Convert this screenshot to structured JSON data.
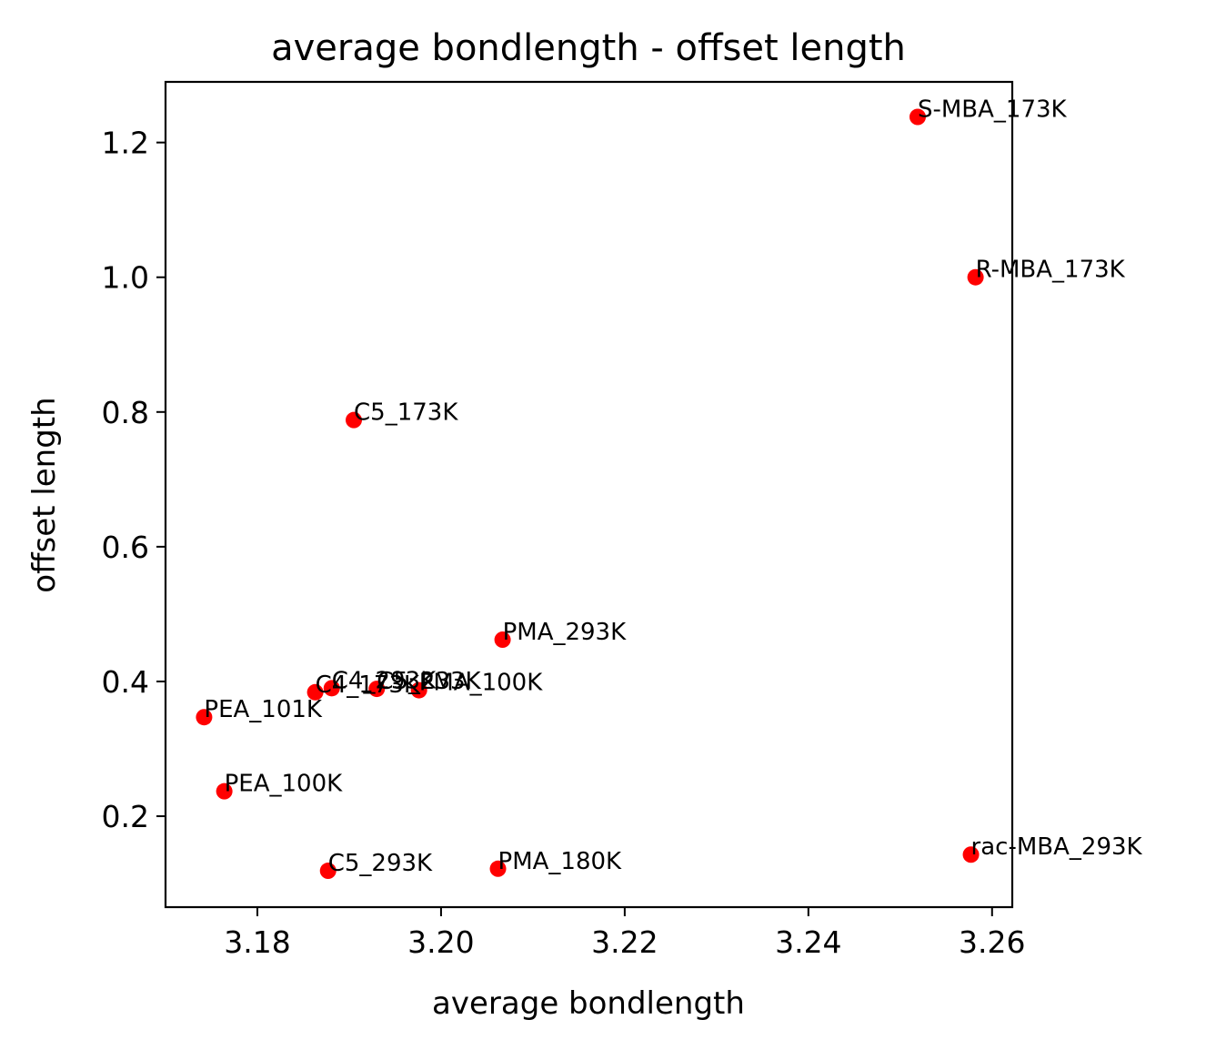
{
  "chart_data": {
    "type": "scatter",
    "title": "average bondlength - offset length",
    "xlabel": "average bondlength",
    "ylabel": "offset length",
    "xlim": [
      3.17,
      3.2622
    ],
    "ylim": [
      0.065,
      1.29
    ],
    "xticks": [
      3.18,
      3.2,
      3.22,
      3.24,
      3.26
    ],
    "xtick_labels": [
      "3.18",
      "3.20",
      "3.22",
      "3.24",
      "3.26"
    ],
    "yticks": [
      0.2,
      0.4,
      0.6,
      0.8,
      1.0,
      1.2
    ],
    "ytick_labels": [
      "0.2",
      "0.4",
      "0.6",
      "0.8",
      "1.0",
      "1.2"
    ],
    "grid": false,
    "marker_color": "#ff0000",
    "points": [
      {
        "label": "S-MBA_173K",
        "x": 3.2519,
        "y": 1.238
      },
      {
        "label": "R-MBA_173K",
        "x": 3.2582,
        "y": 1.0
      },
      {
        "label": "C5_173K",
        "x": 3.1905,
        "y": 0.788
      },
      {
        "label": "PMA_293K",
        "x": 3.2067,
        "y": 0.462
      },
      {
        "label": "C4_173K",
        "x": 3.1863,
        "y": 0.384
      },
      {
        "label": "C4_293K",
        "x": 3.1881,
        "y": 0.39
      },
      {
        "label": "C5_233K",
        "x": 3.193,
        "y": 0.389
      },
      {
        "label": "PMA_100K",
        "x": 3.1976,
        "y": 0.387
      },
      {
        "label": "PEA_101K",
        "x": 3.1742,
        "y": 0.347
      },
      {
        "label": "PEA_100K",
        "x": 3.1764,
        "y": 0.237
      },
      {
        "label": "C5_293K",
        "x": 3.1877,
        "y": 0.119
      },
      {
        "label": "PMA_180K",
        "x": 3.2062,
        "y": 0.122
      },
      {
        "label": "rac-MBA_293K",
        "x": 3.2577,
        "y": 0.143
      }
    ]
  }
}
